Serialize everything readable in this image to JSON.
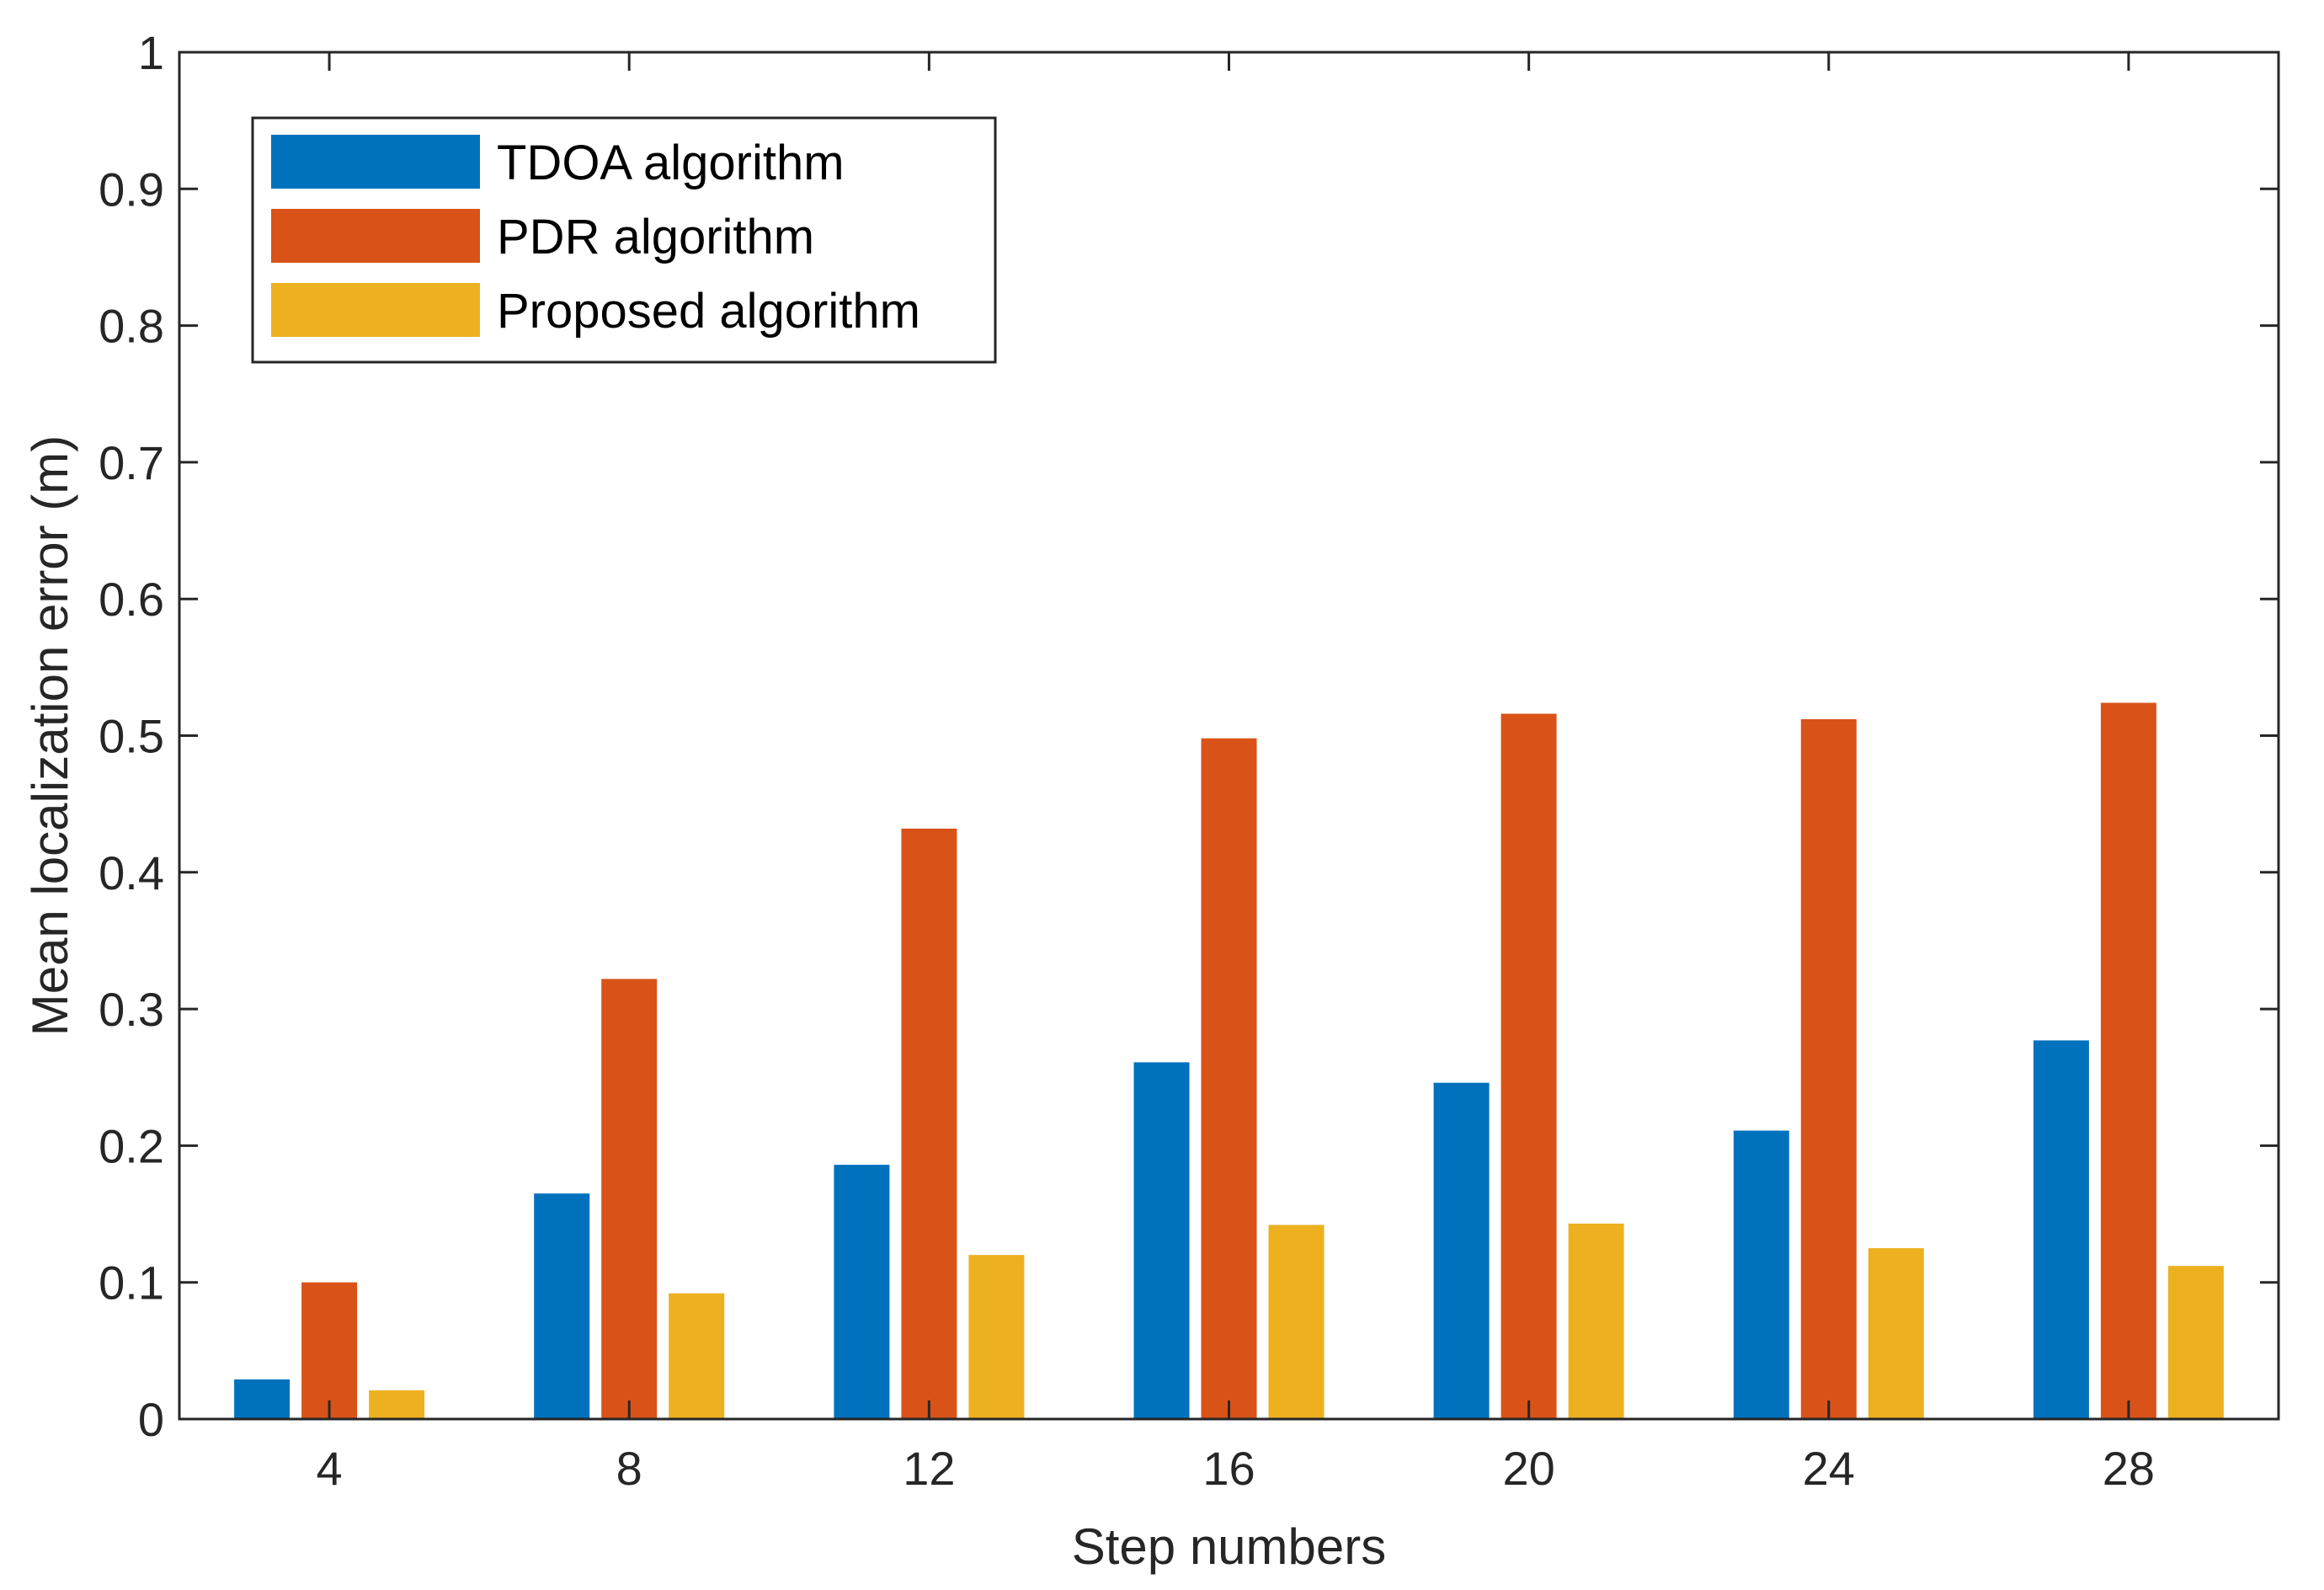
{
  "chart_data": {
    "type": "bar",
    "title": "",
    "xlabel": "Step numbers",
    "ylabel": "Mean localization error (m)",
    "categories": [
      "4",
      "8",
      "12",
      "16",
      "20",
      "24",
      "28"
    ],
    "ylim": [
      0,
      1
    ],
    "yticks": [
      "0",
      "0.1",
      "0.2",
      "0.3",
      "0.4",
      "0.5",
      "0.6",
      "0.7",
      "0.8",
      "0.9",
      "1"
    ],
    "grid": false,
    "legend_position": "top-left",
    "series": [
      {
        "name": "TDOA algorithm",
        "color": "#0072BD",
        "values": [
          0.029,
          0.165,
          0.186,
          0.261,
          0.246,
          0.211,
          0.277
        ]
      },
      {
        "name": "PDR algorithm",
        "color": "#D95319",
        "values": [
          0.1,
          0.322,
          0.432,
          0.498,
          0.516,
          0.512,
          0.524
        ]
      },
      {
        "name": "Proposed algorithm",
        "color": "#EDB120",
        "values": [
          0.021,
          0.092,
          0.12,
          0.142,
          0.143,
          0.125,
          0.112
        ]
      }
    ]
  }
}
